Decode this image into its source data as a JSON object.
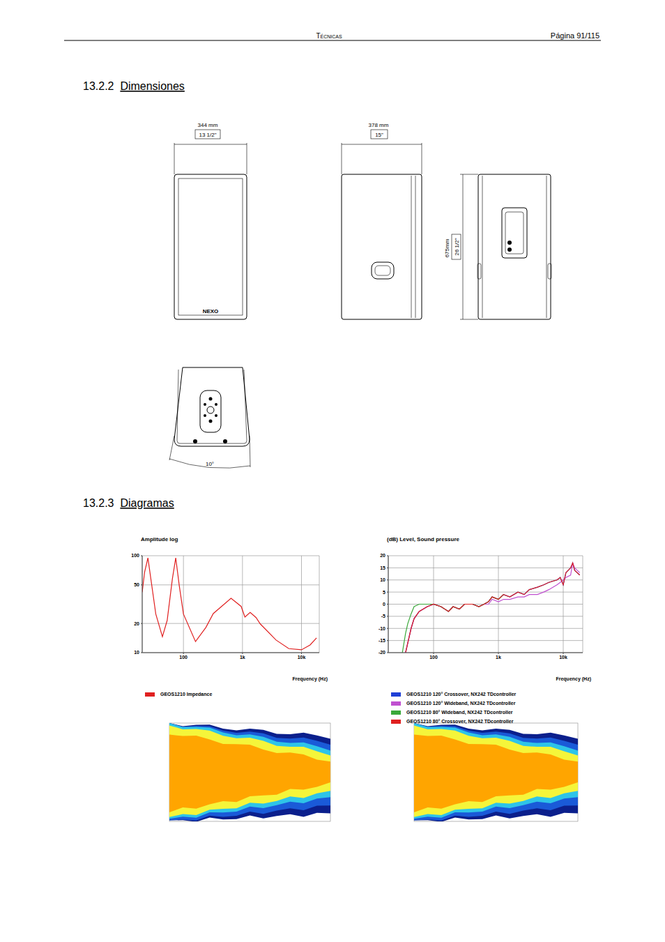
{
  "header": {
    "section": "Técnicas",
    "page": "Página 91/115"
  },
  "sections": [
    {
      "number": "13.2.2",
      "title": "Dimensiones"
    },
    {
      "number": "13.2.3",
      "title": "Diagramas"
    }
  ],
  "drawings": {
    "logo": "NEXO",
    "width": {
      "mm": "344 mm",
      "inch": "13 1/2\""
    },
    "depth": {
      "mm": "378 mm",
      "inch": "15\""
    },
    "height": {
      "mm": "675mm",
      "inch": "26 1/2\""
    },
    "angle": "10°"
  },
  "chart_data": [
    {
      "type": "line",
      "title": "Amplitude log",
      "x_label": "Frequency (Hz)",
      "x": [
        20,
        22,
        25,
        28,
        34,
        44,
        53,
        65,
        74,
        85,
        100,
        160,
        240,
        320,
        640,
        950,
        1100,
        1350,
        1700,
        2000,
        3700,
        6100,
        10000,
        14000,
        18000
      ],
      "series": [
        {
          "name": "GEOS1210 Impedance",
          "color": "#e02020",
          "values": [
            42,
            68,
            95,
            58,
            25,
            14.6,
            21.5,
            58,
            95,
            49,
            25,
            13,
            18.2,
            25.3,
            36.4,
            30,
            23.3,
            26,
            23,
            19.8,
            13.5,
            11,
            10.7,
            12,
            14.2
          ]
        }
      ],
      "xlim": [
        20,
        20000
      ],
      "ylim": [
        10,
        100
      ],
      "xticks": [
        100,
        {
          "value": 1000,
          "label": "1k"
        },
        {
          "value": 10000,
          "label": "10k"
        }
      ],
      "yticks": [
        10,
        20,
        50,
        100
      ],
      "log": true,
      "grid": true
    },
    {
      "type": "line",
      "title": "(dB) Level, Sound pressure",
      "x_label": "Frequency (Hz)",
      "x": [
        33,
        37,
        40,
        45,
        50,
        60,
        80,
        100,
        130,
        170,
        200,
        250,
        300,
        400,
        500,
        600,
        700,
        800,
        1000,
        1200,
        1500,
        2000,
        2500,
        3000,
        4000,
        5000,
        6000,
        8000,
        9000,
        10000,
        11000,
        13000,
        14000,
        15000,
        18000
      ],
      "series": [
        {
          "name": "GEOS1210 120° Crossover, NX242 TDcontroller",
          "color": "#1f3fd6",
          "values": [
            null,
            -20,
            -16,
            -10,
            -6,
            -3,
            -1,
            0,
            -1,
            -3,
            -1,
            -2,
            0,
            0,
            -1,
            0,
            1,
            3,
            2,
            4,
            3,
            5,
            4,
            6,
            7,
            8,
            9,
            10,
            11,
            8,
            13,
            15,
            17,
            14,
            12
          ]
        },
        {
          "name": "GEOS1210 120° Wideband, NX242 TDcontroller",
          "color": "#c050d0",
          "values": [
            null,
            -20,
            -16,
            -10,
            -6,
            -3,
            -1,
            0,
            -1,
            -3,
            -1,
            -2,
            0,
            0,
            -1,
            0,
            0,
            2,
            1,
            2,
            2,
            3,
            3,
            4,
            4,
            5,
            6,
            8,
            9,
            10,
            11,
            12,
            17,
            15,
            13
          ]
        },
        {
          "name": "GEOS1210 80° Wideband, NX242 TDcontroller",
          "color": "#3aa83a",
          "values": [
            -20,
            -12,
            -8,
            -4,
            -1,
            0,
            0,
            0,
            -1,
            -3,
            -1,
            -2,
            0,
            0,
            -1,
            0,
            1,
            3,
            2,
            4,
            null,
            null,
            null,
            null,
            null,
            null,
            null,
            null,
            null,
            null,
            null,
            null,
            null,
            null,
            null
          ]
        },
        {
          "name": "GEOS1210 80° Crossover, NX242 TDcontroller",
          "color": "#e02020",
          "values": [
            null,
            -20,
            -16,
            -10,
            -6,
            -3,
            -1,
            0,
            -1,
            -3,
            -1,
            -2,
            0,
            0,
            -1,
            0,
            1,
            3,
            2,
            4,
            3,
            5,
            4,
            6,
            7,
            8,
            9,
            10,
            11,
            8,
            13,
            15,
            17,
            14,
            12
          ]
        }
      ],
      "xlim": [
        20,
        20000
      ],
      "ylim": [
        -20,
        20
      ],
      "xticks": [
        100,
        {
          "value": 1000,
          "label": "1k"
        },
        {
          "value": 10000,
          "label": "10k"
        }
      ],
      "yticks": [
        -20,
        -15,
        -10,
        -5,
        0,
        5,
        10,
        15,
        20
      ],
      "log": "x",
      "grid": true
    }
  ]
}
